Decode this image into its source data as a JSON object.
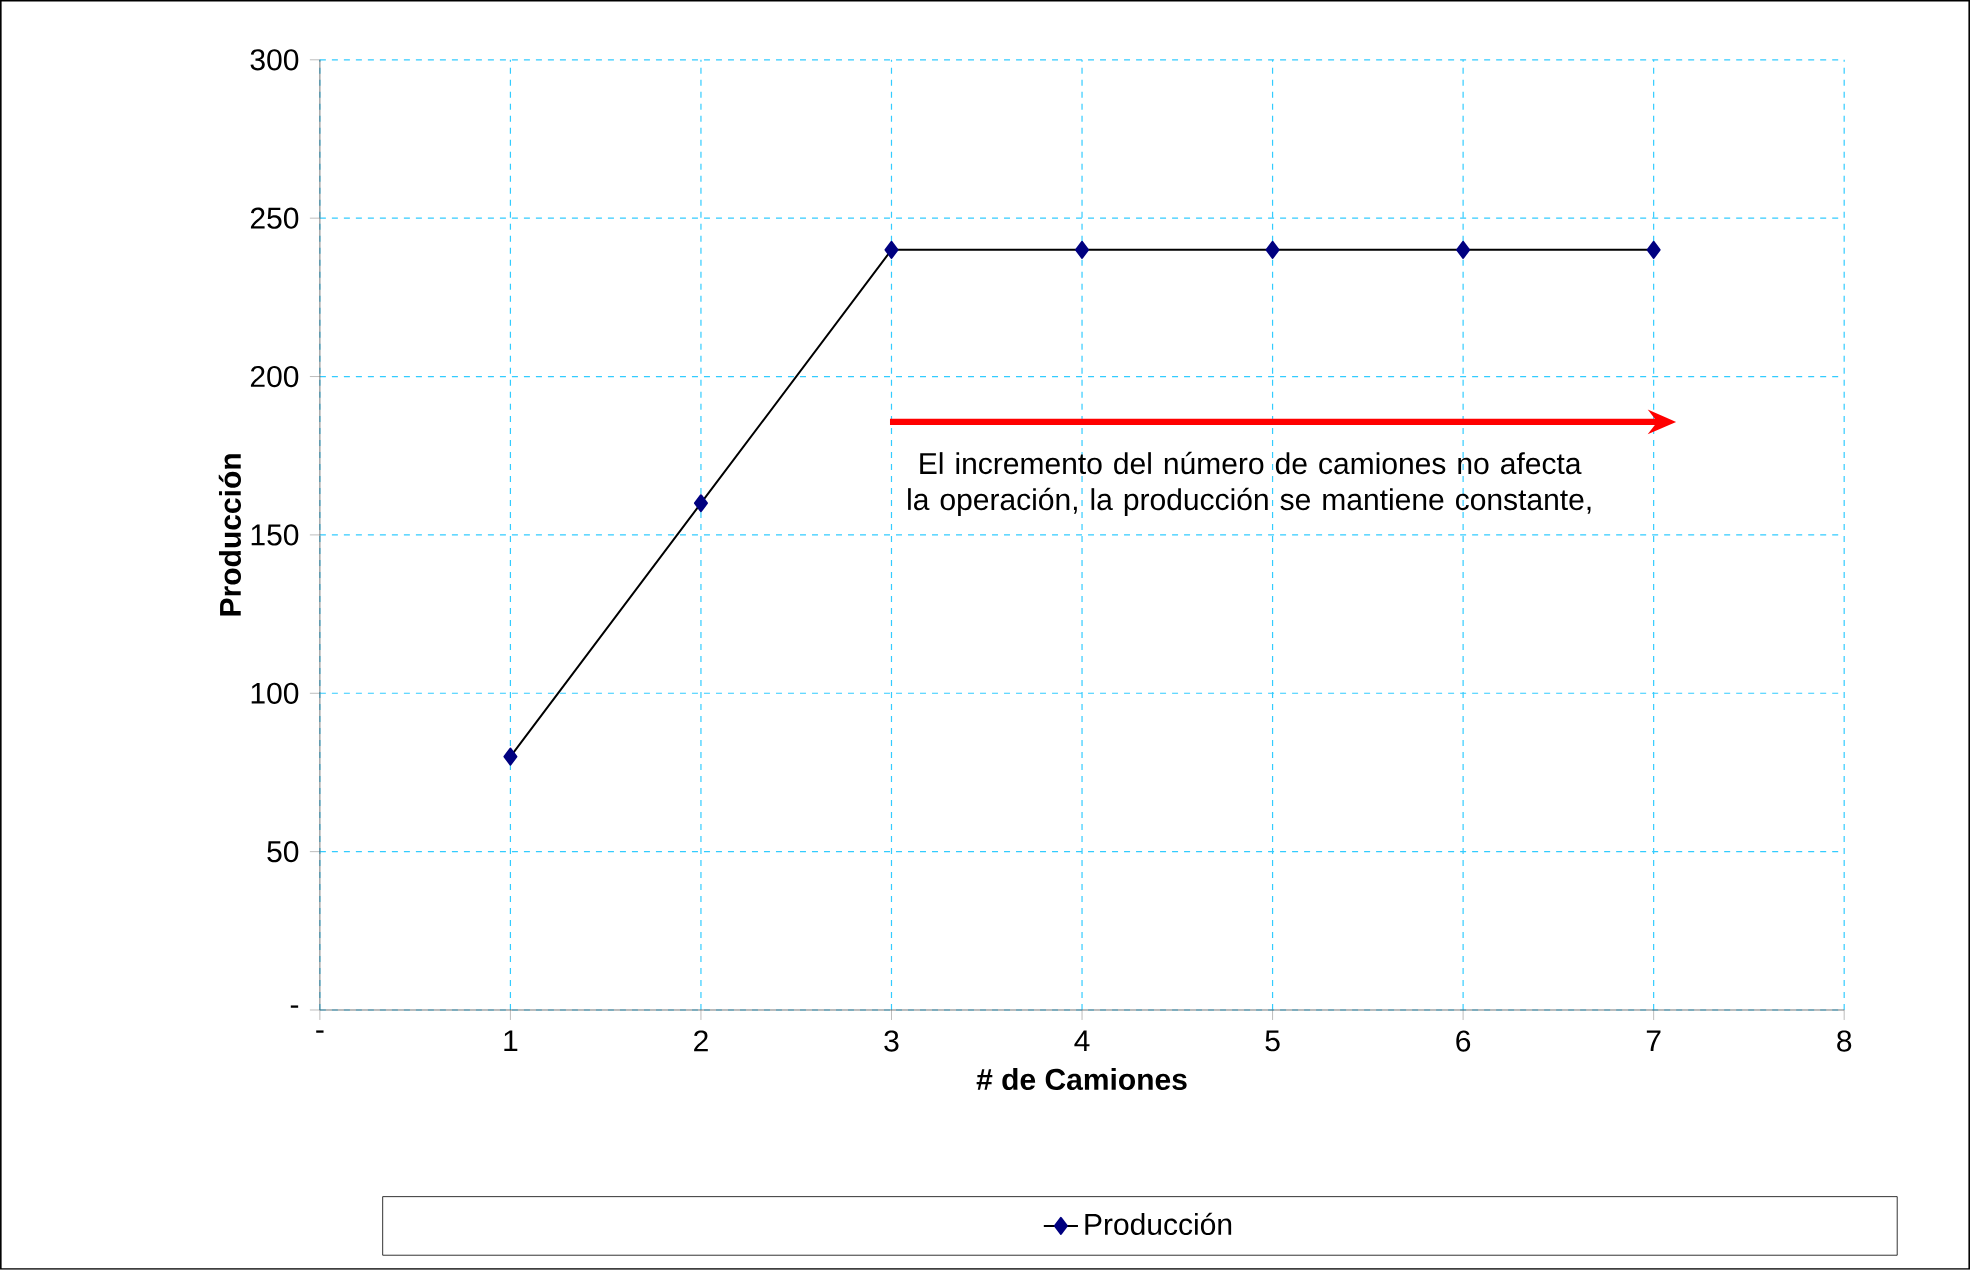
{
  "chart_data": {
    "type": "line",
    "xlabel": "# de Camiones",
    "ylabel": "Producción",
    "x": [
      1,
      2,
      3,
      4,
      5,
      6,
      7
    ],
    "series": [
      {
        "name": "Producción",
        "color": "#000080",
        "values": [
          80,
          160,
          240,
          240,
          240,
          240,
          240
        ]
      }
    ],
    "xlim": [
      0,
      8
    ],
    "xticks": [
      {
        "value": 0,
        "label": "-"
      },
      1,
      2,
      3,
      4,
      5,
      6,
      7,
      8
    ],
    "ylim": [
      0,
      300
    ],
    "yticks": [
      {
        "value": 0,
        "label": "-"
      },
      50,
      100,
      150,
      200,
      250,
      300
    ],
    "grid": true,
    "legend": "bottom",
    "marker": "diamond",
    "line_style": "solid",
    "annotations": [
      "El incremento del número de camiones no afecta la operación, la producción se mantiene constante,"
    ]
  }
}
